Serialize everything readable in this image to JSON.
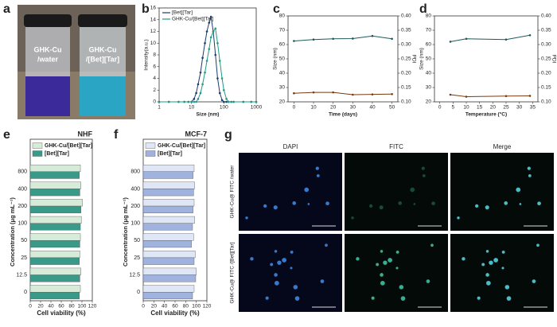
{
  "panel_labels": [
    "a",
    "b",
    "c",
    "d",
    "e",
    "f",
    "g"
  ],
  "photo": {
    "left": [
      "GHK-Cu",
      "/water"
    ],
    "right": [
      "GHK-Cu",
      "/[Bet][Tar]"
    ]
  },
  "microscopy": {
    "columns": [
      "DAPI",
      "FITC",
      "Merge"
    ],
    "rows": [
      "GHK-Cu@ FITC /water",
      "GHK-Cu@ FITC /[Bet][Tar]"
    ]
  },
  "chart_data": [
    {
      "type": "line",
      "x_label": "Size (nm)",
      "y_label": "Intensity(a.u.)",
      "xscale": "log",
      "x": [
        1,
        2,
        4,
        6,
        8,
        10,
        12,
        14,
        16,
        19,
        22,
        26,
        30,
        35,
        40,
        47,
        55,
        64,
        75,
        88,
        100,
        120,
        140,
        170,
        200,
        400,
        700,
        1000
      ],
      "xlim": [
        1,
        1000
      ],
      "xticks": [
        1,
        10,
        100,
        1000
      ],
      "ylim": [
        0,
        16
      ],
      "yticks": [
        0,
        2,
        4,
        6,
        8,
        10,
        12,
        14,
        16
      ],
      "legend": "top-left",
      "series": [
        {
          "name": "[Bet][Tar]",
          "color": "#1d3b6b",
          "values": [
            0,
            0,
            0,
            0,
            0,
            0,
            0.5,
            1.5,
            3,
            5,
            7.5,
            10,
            12,
            13.5,
            14.5,
            12,
            8,
            4,
            1.5,
            0.3,
            0,
            0,
            0,
            0,
            0,
            0,
            0,
            0
          ]
        },
        {
          "name": "GHK-Cu/[Bet][Tar]",
          "color": "#1f9a86",
          "values": [
            0,
            0,
            0,
            0,
            0,
            0,
            0,
            0,
            0.5,
            1.5,
            3,
            5,
            7,
            9,
            11,
            12,
            12.5,
            10,
            7,
            4,
            2,
            0.5,
            0,
            0,
            0,
            0,
            0,
            0
          ]
        }
      ]
    },
    {
      "type": "line",
      "x_label": "Time (days)",
      "y_label": "Size (nm)",
      "y2_label": "PDI",
      "x": [
        0,
        10,
        20,
        30,
        40,
        50
      ],
      "xlim": [
        -3,
        53
      ],
      "xticks": [
        0,
        10,
        20,
        30,
        40,
        50
      ],
      "ylim": [
        20,
        80
      ],
      "yticks": [
        20,
        30,
        40,
        50,
        60,
        70,
        80
      ],
      "y2lim": [
        0.1,
        0.4
      ],
      "y2ticks": [
        {
          "value": 0.1,
          "label": "0.10"
        },
        0.15,
        {
          "value": 0.2,
          "label": "0.20"
        },
        0.25,
        {
          "value": 0.3,
          "label": "0.30"
        },
        0.35,
        {
          "value": 0.4,
          "label": "0.40"
        }
      ],
      "series": [
        {
          "color": "#1d5a5a",
          "values": [
            62.5,
            63.5,
            64,
            64.2,
            66,
            64
          ]
        },
        {
          "color": "#7a3a12",
          "axis": "y2",
          "values": [
            0.13,
            0.133,
            0.133,
            0.125,
            0.126,
            0.127
          ]
        }
      ]
    },
    {
      "type": "line",
      "x_label": "Temperature (°C)",
      "y_label": "Size (nm)",
      "y2_label": "PDI",
      "x": [
        4,
        10,
        25,
        34
      ],
      "xlim": [
        -2,
        37
      ],
      "xticks": [
        0,
        5,
        10,
        15,
        20,
        25,
        30,
        35
      ],
      "ylim": [
        20,
        80
      ],
      "yticks": [
        20,
        30,
        40,
        50,
        60,
        70,
        80
      ],
      "y2lim": [
        0.1,
        0.4
      ],
      "y2ticks": [
        {
          "value": 0.1,
          "label": "0.10"
        },
        0.15,
        {
          "value": 0.2,
          "label": "0.20"
        },
        0.25,
        {
          "value": 0.3,
          "label": "0.30"
        },
        0.35,
        {
          "value": 0.4,
          "label": "0.40"
        }
      ],
      "series": [
        {
          "color": "#1d5a5a",
          "values": [
            62,
            64,
            63.5,
            66.5
          ]
        },
        {
          "color": "#7a3a12",
          "axis": "y2",
          "values": [
            0.125,
            0.118,
            0.12,
            0.121
          ]
        }
      ]
    },
    {
      "type": "hbar",
      "title": "NHF",
      "x_label": "Cell viability (%)",
      "y_label": "Concentration (μg mL⁻¹)",
      "categories": [
        "0",
        "12.5",
        "25",
        "50",
        "100",
        "200",
        "400",
        "800"
      ],
      "xlim": [
        0,
        120
      ],
      "xticks": [
        0,
        20,
        40,
        60,
        80,
        100,
        120
      ],
      "series": [
        {
          "name": "GHK-Cu/[Bet][Tar]",
          "color": "#d6ecd9",
          "values": [
            97,
            98,
            96,
            97,
            99,
            101,
            98,
            97
          ]
        },
        {
          "name": "[Bet][Tar]",
          "color": "#3a9a8a",
          "values": [
            95,
            96,
            95,
            96,
            97,
            98,
            96,
            95
          ]
        }
      ]
    },
    {
      "type": "hbar",
      "title": "MCF-7",
      "x_label": "Cell viability (%)",
      "y_label": "Concentration (μg mL⁻¹)",
      "categories": [
        "0",
        "12.5",
        "25",
        "50",
        "100",
        "200",
        "400",
        "800"
      ],
      "xlim": [
        0,
        120
      ],
      "xticks": [
        0,
        20,
        40,
        60,
        80,
        100,
        120
      ],
      "series": [
        {
          "name": "GHK-Cu/[Bet][Tar]",
          "color": "#dfe7f6",
          "values": [
            96,
            100,
            98,
            95,
            97,
            96,
            97,
            96
          ]
        },
        {
          "name": "[Bet][Tar]",
          "color": "#9fb3de",
          "values": [
            93,
            99,
            96,
            91,
            93,
            94,
            95,
            94
          ]
        }
      ]
    }
  ]
}
